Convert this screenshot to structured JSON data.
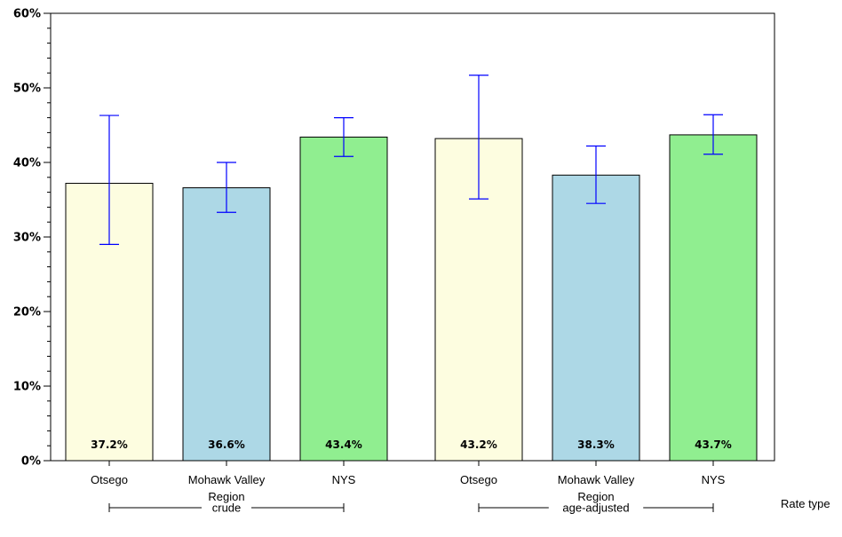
{
  "chart_data": {
    "type": "bar",
    "ylim": [
      0,
      60
    ],
    "y_ticks": [
      0,
      10,
      20,
      30,
      40,
      50,
      60
    ],
    "y_tick_labels": [
      "0%",
      "10%",
      "20%",
      "30%",
      "40%",
      "50%",
      "60%"
    ],
    "bars": [
      {
        "category": "Otsego",
        "category_lines": [
          "Otsego"
        ],
        "group": "crude",
        "value": 37.2,
        "ci_low": 29.0,
        "ci_high": 46.3,
        "label": "37.2%",
        "color": "#fdfde0"
      },
      {
        "category": "Mohawk Valley Region",
        "category_lines": [
          "Mohawk Valley",
          "Region"
        ],
        "group": "crude",
        "value": 36.6,
        "ci_low": 33.3,
        "ci_high": 40.0,
        "label": "36.6%",
        "color": "#add8e6"
      },
      {
        "category": "NYS",
        "category_lines": [
          "NYS"
        ],
        "group": "crude",
        "value": 43.4,
        "ci_low": 40.8,
        "ci_high": 46.0,
        "label": "43.4%",
        "color": "#90ee90"
      },
      {
        "category": "Otsego",
        "category_lines": [
          "Otsego"
        ],
        "group": "age-adjusted",
        "value": 43.2,
        "ci_low": 35.1,
        "ci_high": 51.7,
        "label": "43.2%",
        "color": "#fdfde0"
      },
      {
        "category": "Mohawk Valley Region",
        "category_lines": [
          "Mohawk Valley",
          "Region"
        ],
        "group": "age-adjusted",
        "value": 38.3,
        "ci_low": 34.5,
        "ci_high": 42.2,
        "label": "38.3%",
        "color": "#add8e6"
      },
      {
        "category": "NYS",
        "category_lines": [
          "NYS"
        ],
        "group": "age-adjusted",
        "value": 43.7,
        "ci_low": 41.1,
        "ci_high": 46.4,
        "label": "43.7%",
        "color": "#90ee90"
      }
    ],
    "groups": [
      "crude",
      "age-adjusted"
    ],
    "group_axis_label": "Rate type",
    "error_bar_color": "#0000ff",
    "grid": false
  }
}
